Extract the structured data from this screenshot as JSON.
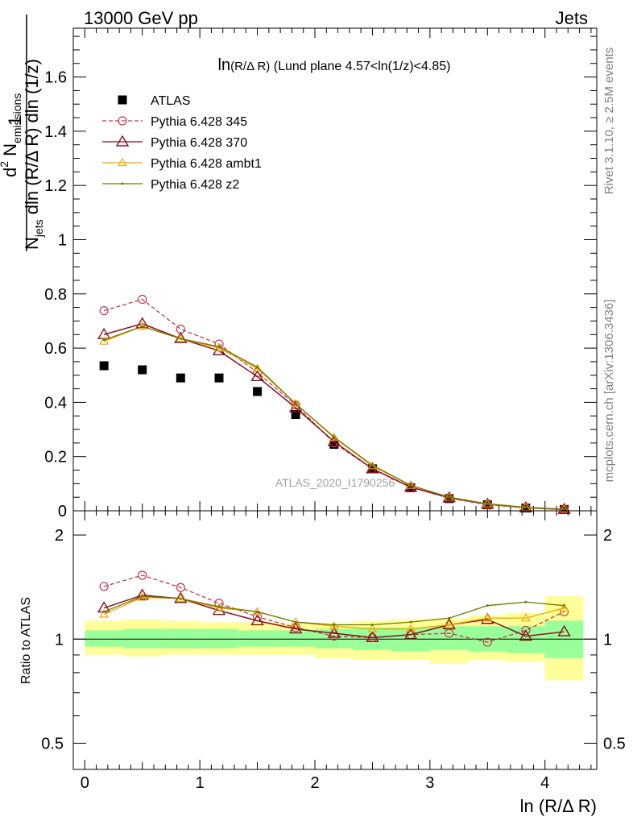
{
  "header": {
    "left": "13000 GeV pp",
    "right": "Jets"
  },
  "side_labels": {
    "rivet": "Rivet 3.1.10, ≥ 2.5M events",
    "mcplots": "mcplots.cern.ch [arXiv:1306.3436]"
  },
  "plot_title": {
    "main": "ln",
    "sub": "(R/Δ R)",
    "rest": " (Lund plane 4.57<ln(1/z)<4.85)"
  },
  "analysis_id": "ATLAS_2020_I1790256",
  "xlabel": "ln (R/Δ R)",
  "ylabel_upper": {
    "one": "1",
    "n_jets_N": "N",
    "n_jets_sub": "jets",
    "n_jets_rest": " dln (R/Δ R) dln (1/z)",
    "d2": "d",
    "d2_sup": "2",
    "n_em": " N",
    "n_em_sub": "emissions"
  },
  "ylabel_lower": "Ratio to ATLAS",
  "colors": {
    "atlas": "#000000",
    "p345": "#c1394a",
    "p370": "#8b0f1e",
    "ambt1": "#f0a500",
    "z2": "#6b7a00",
    "band_inner": "#99ff99",
    "band_outer": "#ffff99"
  },
  "chart_data": [
    {
      "type": "scatter",
      "panel": "main",
      "x": [
        0.167,
        0.5,
        0.833,
        1.167,
        1.5,
        1.833,
        2.167,
        2.5,
        2.833,
        3.167,
        3.5,
        3.833,
        4.167
      ],
      "xlim": [
        -0.1,
        4.45
      ],
      "ylim": [
        0,
        1.78
      ],
      "yticks": [
        0.2,
        0.4,
        0.6,
        0.8,
        1,
        1.2,
        1.4,
        1.6
      ],
      "ytick_labels": [
        "0.2",
        "0.4",
        "0.6",
        "0.8",
        "1",
        "1.2",
        "1.4",
        "1.6"
      ],
      "xticks": [
        0,
        1,
        2,
        3,
        4
      ],
      "series": [
        {
          "name": "ATLAS",
          "style": "square",
          "values": [
            0.535,
            0.52,
            0.49,
            0.49,
            0.44,
            0.355,
            0.245,
            0.155,
            0.085,
            0.045,
            0.022,
            0.01,
            0.005
          ]
        },
        {
          "name": "Pythia 6.428 345",
          "style": "open-circle-dashed",
          "values": [
            0.738,
            0.78,
            0.67,
            0.615,
            0.51,
            0.39,
            0.25,
            0.155,
            0.087,
            0.047,
            0.022,
            0.011,
            0.006
          ]
        },
        {
          "name": "Pythia 6.428 370",
          "style": "open-triangle",
          "values": [
            0.65,
            0.69,
            0.635,
            0.59,
            0.495,
            0.38,
            0.255,
            0.155,
            0.087,
            0.048,
            0.024,
            0.011,
            0.005
          ]
        },
        {
          "name": "Pythia 6.428 ambt1",
          "style": "open-triangle-small",
          "values": [
            0.625,
            0.68,
            0.635,
            0.6,
            0.525,
            0.395,
            0.27,
            0.165,
            0.093,
            0.05,
            0.025,
            0.012,
            0.006
          ]
        },
        {
          "name": "Pythia 6.428 z2",
          "style": "dot",
          "values": [
            0.63,
            0.68,
            0.635,
            0.605,
            0.53,
            0.395,
            0.272,
            0.168,
            0.094,
            0.05,
            0.026,
            0.013,
            0.006
          ]
        }
      ]
    },
    {
      "type": "line",
      "panel": "ratio",
      "x": [
        0.167,
        0.5,
        0.833,
        1.167,
        1.5,
        1.833,
        2.167,
        2.5,
        2.833,
        3.167,
        3.5,
        3.833,
        4.167
      ],
      "xlim": [
        -0.1,
        4.45
      ],
      "ylim": [
        0.42,
        2.35
      ],
      "log_y": true,
      "yticks": [
        0.5,
        1,
        2
      ],
      "ytick_labels": [
        "0.5",
        "1",
        "2"
      ],
      "xticks": [
        0,
        1,
        2,
        3,
        4
      ],
      "xtick_labels": [
        "0",
        "1",
        "2",
        "3",
        "4"
      ],
      "band_edges": [
        0,
        0.333,
        0.667,
        1,
        1.333,
        1.667,
        2,
        2.333,
        2.667,
        3,
        3.333,
        3.667,
        4,
        4.333
      ],
      "band_inner": [
        [
          0.95,
          1.06
        ],
        [
          0.94,
          1.07
        ],
        [
          0.94,
          1.07
        ],
        [
          0.94,
          1.07
        ],
        [
          0.95,
          1.06
        ],
        [
          0.95,
          1.06
        ],
        [
          0.94,
          1.07
        ],
        [
          0.93,
          1.08
        ],
        [
          0.92,
          1.08
        ],
        [
          0.93,
          1.09
        ],
        [
          0.92,
          1.09
        ],
        [
          0.91,
          1.09
        ],
        [
          0.88,
          1.13
        ]
      ],
      "band_outer": [
        [
          0.9,
          1.13
        ],
        [
          0.89,
          1.14
        ],
        [
          0.9,
          1.13
        ],
        [
          0.9,
          1.12
        ],
        [
          0.9,
          1.12
        ],
        [
          0.9,
          1.11
        ],
        [
          0.88,
          1.11
        ],
        [
          0.87,
          1.13
        ],
        [
          0.87,
          1.14
        ],
        [
          0.85,
          1.15
        ],
        [
          0.87,
          1.17
        ],
        [
          0.86,
          1.19
        ],
        [
          0.76,
          1.33
        ]
      ],
      "series": [
        {
          "name": "Pythia 6.428 345",
          "values": [
            1.42,
            1.53,
            1.41,
            1.27,
            1.16,
            1.08,
            1.02,
            1.01,
            1.03,
            1.04,
            0.98,
            1.06,
            1.2
          ]
        },
        {
          "name": "Pythia 6.428 370",
          "values": [
            1.23,
            1.34,
            1.31,
            1.21,
            1.13,
            1.07,
            1.04,
            1.01,
            1.03,
            1.1,
            1.14,
            1.02,
            1.05
          ]
        },
        {
          "name": "Pythia 6.428 ambt1",
          "values": [
            1.18,
            1.32,
            1.31,
            1.23,
            1.2,
            1.12,
            1.09,
            1.07,
            1.07,
            1.1,
            1.15,
            1.15,
            1.23
          ]
        },
        {
          "name": "Pythia 6.428 z2",
          "values": [
            1.2,
            1.33,
            1.31,
            1.24,
            1.2,
            1.12,
            1.1,
            1.1,
            1.12,
            1.15,
            1.25,
            1.28,
            1.25
          ]
        }
      ]
    }
  ]
}
